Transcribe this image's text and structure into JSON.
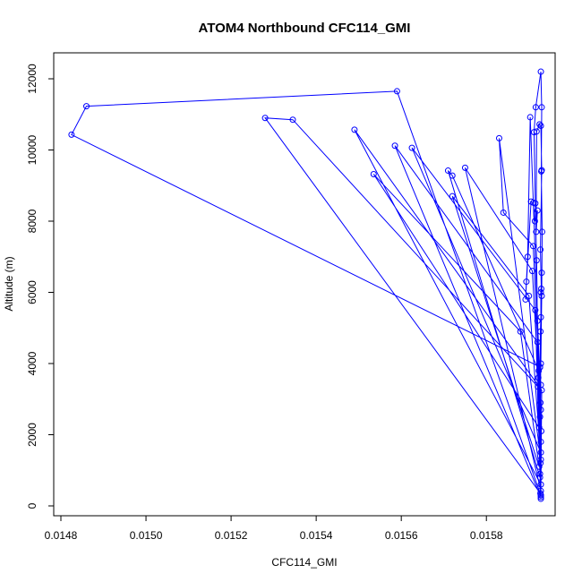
{
  "chart_data": {
    "type": "line",
    "title": "ATOM4 Northbound CFC114_GMI",
    "xlabel": "CFC114_GMI",
    "ylabel": "Altitude (m)",
    "xlim": [
      0.0148,
      0.01594
    ],
    "ylim": [
      0,
      12400
    ],
    "x_ticks": [
      0.0148,
      0.015,
      0.0152,
      0.0154,
      0.0156,
      0.0158
    ],
    "x_tick_labels": [
      "0.0148",
      "0.0150",
      "0.0152",
      "0.0154",
      "0.0156",
      "0.0158"
    ],
    "y_ticks": [
      0,
      2000,
      4000,
      6000,
      8000,
      10000,
      12000
    ],
    "y_tick_labels": [
      "0",
      "2000",
      "4000",
      "6000",
      "8000",
      "10000",
      "12000"
    ],
    "grid": false,
    "series": [
      {
        "color": "#0000ff",
        "marker": "open-circle",
        "points": [
          [
            0.015928,
            200
          ],
          [
            0.015926,
            900
          ],
          [
            0.015924,
            2200
          ],
          [
            0.015922,
            3600
          ],
          [
            0.01592,
            5200
          ],
          [
            0.015918,
            6900
          ],
          [
            0.015915,
            8500
          ],
          [
            0.015912,
            10500
          ],
          [
            0.015916,
            11200
          ],
          [
            0.015928,
            12200
          ],
          [
            0.01593,
            11200
          ],
          [
            0.015929,
            9400
          ],
          [
            0.015931,
            7700
          ],
          [
            0.01593,
            5900
          ],
          [
            0.015928,
            4000
          ],
          [
            0.015926,
            2500
          ],
          [
            0.015927,
            1200
          ],
          [
            0.015928,
            300
          ],
          [
            0.01559,
            11650
          ],
          [
            0.01486,
            11230
          ],
          [
            0.014825,
            10430
          ],
          [
            0.015926,
            3900
          ],
          [
            0.015927,
            350
          ],
          [
            0.01528,
            10900
          ],
          [
            0.015345,
            10850
          ],
          [
            0.015921,
            3350
          ],
          [
            0.015928,
            600
          ],
          [
            0.01549,
            10570
          ],
          [
            0.01593,
            3250
          ],
          [
            0.015928,
            250
          ],
          [
            0.015585,
            10120
          ],
          [
            0.01592,
            4600
          ],
          [
            0.015928,
            1500
          ],
          [
            0.015625,
            10060
          ],
          [
            0.015915,
            5500
          ],
          [
            0.015926,
            800
          ],
          [
            0.01571,
            9420
          ],
          [
            0.01572,
            9280
          ],
          [
            0.015923,
            3800
          ],
          [
            0.015928,
            420
          ],
          [
            0.01575,
            9500
          ],
          [
            0.015908,
            6600
          ],
          [
            0.015929,
            2100
          ],
          [
            0.015535,
            9320
          ],
          [
            0.01588,
            4900
          ],
          [
            0.015924,
            1100
          ],
          [
            0.01572,
            8700
          ],
          [
            0.0159,
            5900
          ],
          [
            0.015928,
            1300
          ],
          [
            0.01583,
            10330
          ],
          [
            0.01584,
            8240
          ],
          [
            0.01591,
            7300
          ],
          [
            0.015928,
            2700
          ],
          [
            0.015903,
            10920
          ],
          [
            0.015897,
            7000
          ],
          [
            0.015894,
            6300
          ],
          [
            0.015892,
            5800
          ],
          [
            0.015905,
            8550
          ],
          [
            0.01591,
            8520
          ],
          [
            0.015914,
            8000
          ],
          [
            0.01592,
            8300
          ],
          [
            0.015917,
            7700
          ],
          [
            0.015918,
            10520
          ],
          [
            0.015925,
            10720
          ],
          [
            0.015928,
            10680
          ],
          [
            0.01593,
            9430
          ],
          [
            0.015927,
            7200
          ],
          [
            0.015929,
            6100
          ],
          [
            0.01593,
            6550
          ],
          [
            0.015928,
            6000
          ],
          [
            0.015928,
            5300
          ],
          [
            0.015927,
            4900
          ],
          [
            0.015926,
            3900
          ],
          [
            0.015928,
            3400
          ],
          [
            0.015927,
            2900
          ],
          [
            0.015928,
            1800
          ],
          [
            0.015928,
            300
          ]
        ]
      }
    ]
  }
}
